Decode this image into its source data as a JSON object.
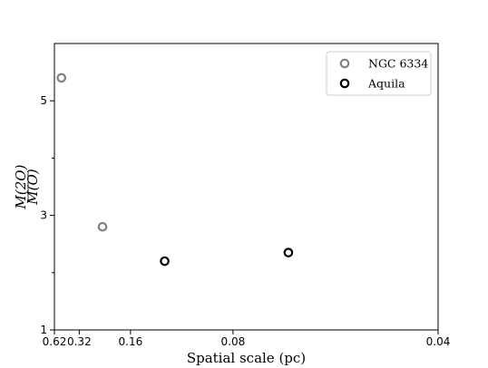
{
  "chart_data": {
    "type": "scatter",
    "xlabel": "Spatial scale (pc)",
    "ylabel_numerator": "M(2O)",
    "ylabel_denominator": "M(O)",
    "x_scale": "reciprocal",
    "x_ticks": [
      {
        "value": 0.62,
        "label": "0.62"
      },
      {
        "value": 0.32,
        "label": "0.32"
      },
      {
        "value": 0.16,
        "label": "0.16"
      },
      {
        "value": 0.08,
        "label": "0.08"
      },
      {
        "value": 0.04,
        "label": "0.04"
      }
    ],
    "y_ticks": [
      {
        "value": 1,
        "label": "1"
      },
      {
        "value": 3,
        "label": "3"
      },
      {
        "value": 5,
        "label": "5"
      }
    ],
    "y_minor_ticks": [
      2,
      4
    ],
    "xlim": [
      0.62,
      0.04
    ],
    "ylim": [
      1,
      6
    ],
    "grid": false,
    "legend_position": "top-right",
    "series": [
      {
        "name": "NGC 6334",
        "color": "#808080",
        "marker": "ring",
        "points": [
          {
            "x": 0.49,
            "y": 5.4
          },
          {
            "x": 0.22,
            "y": 2.8
          }
        ]
      },
      {
        "name": "Aquila",
        "color": "#000000",
        "marker": "ring",
        "points": [
          {
            "x": 0.12,
            "y": 2.2
          },
          {
            "x": 0.063,
            "y": 2.35
          }
        ]
      }
    ]
  }
}
